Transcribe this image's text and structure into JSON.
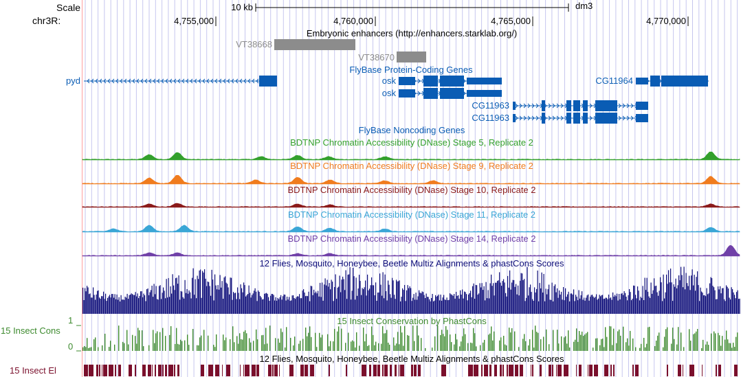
{
  "ruler": {
    "scale_label": "Scale",
    "chrom_label": "chr3R:",
    "scale_bar_label": "10 kb",
    "assembly": "dm3",
    "positions": [
      "4,755,000",
      "4,760,000",
      "4,765,000",
      "4,770,000"
    ]
  },
  "enhancers": {
    "title": "Embryonic enhancers (http://enhancers.starklab.org/)",
    "items": [
      "VT38668",
      "VT38670"
    ]
  },
  "genes": {
    "title": "FlyBase Protein-Coding Genes",
    "names": {
      "pyd": "pyd",
      "osk1": "osk",
      "osk2": "osk",
      "cg11964": "CG11964",
      "cg11963a": "CG11963",
      "cg11963b": "CG11963"
    }
  },
  "noncoding": {
    "title": "FlyBase Noncoding Genes"
  },
  "dnase_tracks": [
    {
      "title": "BDTNP Chromatin Accessibility (DNase) Stage 5, Replicate 2",
      "color": "#33a02c"
    },
    {
      "title": "BDTNP Chromatin Accessibility (DNase) Stage 9, Replicate 2",
      "color": "#f07c1e"
    },
    {
      "title": "BDTNP Chromatin Accessibility (DNase) Stage 10, Replicate 2",
      "color": "#8b1a1a"
    },
    {
      "title": "BDTNP Chromatin Accessibility (DNase) Stage 11, Replicate 2",
      "color": "#3aa6d6"
    },
    {
      "title": "BDTNP Chromatin Accessibility (DNase) Stage 14, Replicate 2",
      "color": "#7040a8"
    }
  ],
  "multiz": {
    "title": "12 Flies, Mosquito, Honeybee, Beetle Multiz Alignments & phastCons Scores",
    "color": "#0c0c78"
  },
  "phastcons": {
    "side_label": "15 Insect Cons",
    "title": "15 Insect Conservation by PhastCons",
    "axis_max": "1",
    "axis_min": "0",
    "color": "#3d8a2e"
  },
  "elements": {
    "side_label": "15 Insect El",
    "title": "12 Flies, Mosquito, Honeybee, Beetle Multiz Alignments & phastCons Scores",
    "color": "#7a0f2c"
  },
  "colors": {
    "gene": "#0a5cb4",
    "enhancer": "#8c8c8c",
    "guide": "#c6c6ee",
    "left_edge": "#ff9f9f"
  }
}
